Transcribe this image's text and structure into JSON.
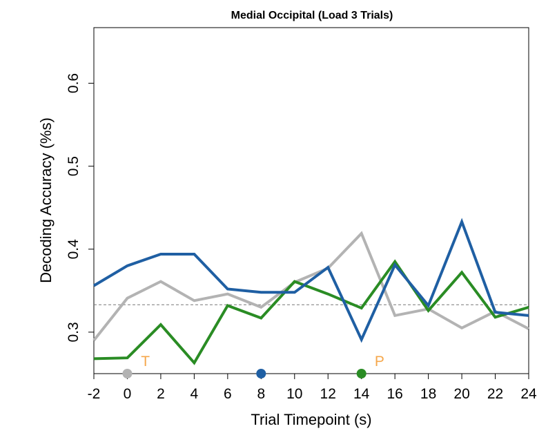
{
  "chart_data": {
    "type": "line",
    "title": "Medial Occipital (Load 3 Trials)",
    "xlabel": "Trial Timepoint (s)",
    "ylabel": "Decoding Accuracy (%s)",
    "x": [
      -2,
      0,
      2,
      4,
      6,
      8,
      10,
      12,
      14,
      16,
      18,
      20,
      22,
      24
    ],
    "xlim": [
      -2,
      24
    ],
    "ylim": [
      0.25,
      0.667
    ],
    "x_ticks": [
      "-2",
      "0",
      "2",
      "4",
      "6",
      "8",
      "10",
      "12",
      "14",
      "16",
      "18",
      "20",
      "22",
      "24"
    ],
    "y_ticks": [
      "0.3",
      "0.4",
      "0.5",
      "0.6"
    ],
    "reference_line": {
      "value": 0.333,
      "style": "dashed",
      "color": "#777777"
    },
    "series": [
      {
        "color": "#b3b3b3",
        "values": [
          0.29,
          0.341,
          0.361,
          0.338,
          0.346,
          0.33,
          0.36,
          0.377,
          0.419,
          0.32,
          0.328,
          0.305,
          0.325,
          0.304
        ]
      },
      {
        "color": "#2a8c24",
        "values": [
          0.268,
          0.269,
          0.309,
          0.263,
          0.332,
          0.317,
          0.361,
          0.346,
          0.329,
          0.385,
          0.326,
          0.372,
          0.318,
          0.33
        ]
      },
      {
        "color": "#1f5fa3",
        "values": [
          0.356,
          0.38,
          0.394,
          0.394,
          0.352,
          0.348,
          0.348,
          0.378,
          0.291,
          0.381,
          0.332,
          0.433,
          0.324,
          0.32
        ]
      }
    ],
    "markers": [
      {
        "x": 0,
        "color": "#b3b3b3"
      },
      {
        "x": 8,
        "color": "#1f5fa3"
      },
      {
        "x": 14,
        "color": "#2a8c24"
      }
    ],
    "annotations": [
      {
        "text": "T",
        "x": 1,
        "color": "#f5a74b"
      },
      {
        "text": "P",
        "x": 15,
        "color": "#f5a74b"
      }
    ],
    "grid": false,
    "legend": "none"
  }
}
